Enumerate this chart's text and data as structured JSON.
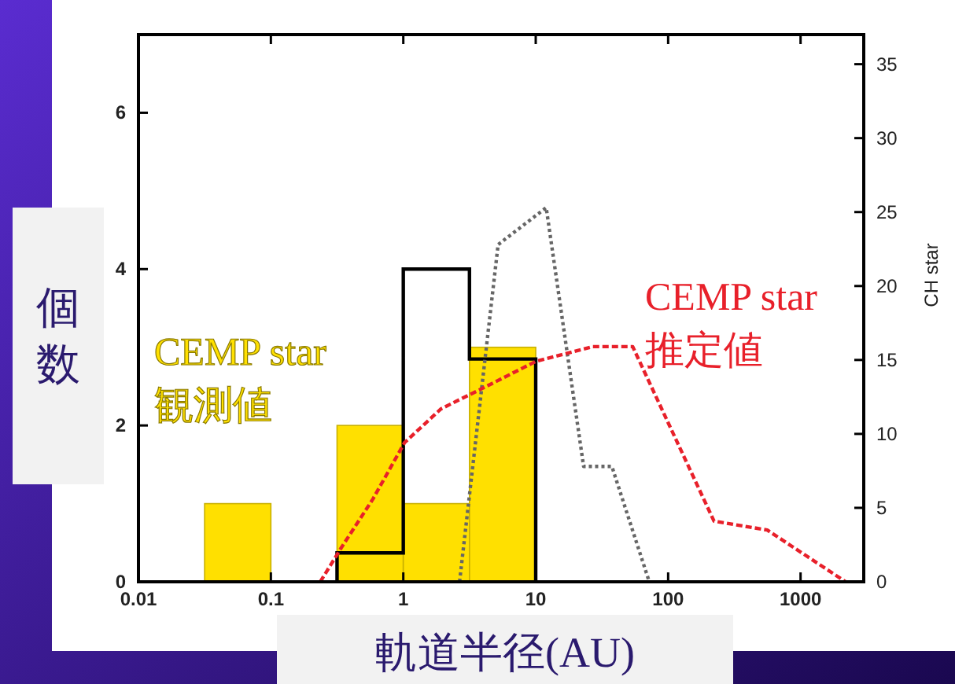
{
  "chart_data": {
    "type": "histogram",
    "xlabel": "軌道半径(AU)",
    "ylabel": "個数",
    "y2label": "CH star",
    "annotations": [
      "CEMP star\n観測値",
      "CEMP star\n推定値"
    ],
    "log": "x",
    "xlim": [
      0.01,
      3000
    ],
    "xticks": [
      0.01,
      0.1,
      1,
      10,
      100,
      1000
    ],
    "ylim": [
      0,
      7
    ],
    "yticks": [
      0,
      2,
      4,
      6
    ],
    "y2lim": [
      0,
      37
    ],
    "y2ticks": [
      0,
      5,
      10,
      15,
      20,
      25,
      30,
      35
    ],
    "grid": false,
    "series": [
      {
        "color": "#ffe000",
        "bins": [
          0.0316,
          0.1,
          0.316,
          1,
          3.16,
          10
        ],
        "values": [
          1,
          0,
          2,
          1,
          3
        ]
      },
      {
        "type": "step",
        "color": "#000000",
        "x": [
          0.316,
          0.316,
          1,
          3.16,
          10,
          10
        ],
        "values": [
          0,
          0.37,
          4,
          2.85,
          2.85,
          0
        ]
      },
      {
        "type": "line",
        "axis": "y2",
        "color": "#666666",
        "line_style": "dotted",
        "x": [
          2.66,
          5.2,
          12,
          23,
          37.6,
          72
        ],
        "values": [
          0,
          22.8,
          25.3,
          7.8,
          7.8,
          0
        ]
      },
      {
        "type": "line",
        "axis": "y2",
        "color": "#e8202a",
        "line_style": "dashed",
        "x": [
          0.236,
          0.34,
          0.59,
          1.02,
          1.93,
          4.0,
          10,
          27,
          54,
          222,
          560,
          2190
        ],
        "values": [
          0,
          2.3,
          5.6,
          9.4,
          11.7,
          13.1,
          14.9,
          15.9,
          15.9,
          4.1,
          3.5,
          0
        ]
      }
    ]
  }
}
